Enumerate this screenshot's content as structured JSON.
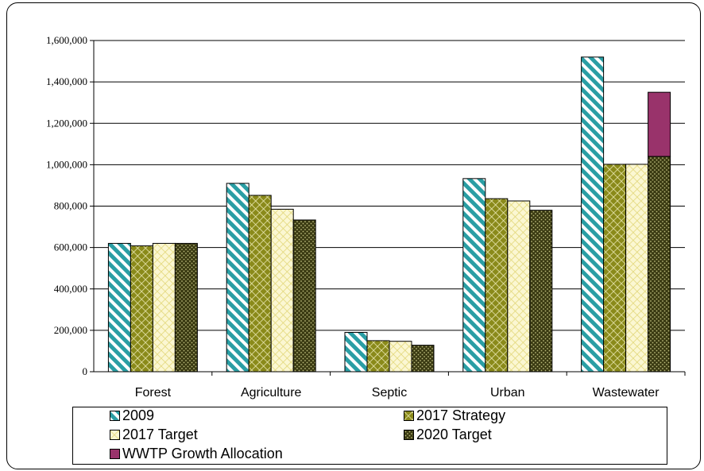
{
  "chart_data": {
    "type": "bar",
    "categories": [
      "Forest",
      "Agriculture",
      "Septic",
      "Urban",
      "Wastewater"
    ],
    "series": [
      {
        "name": "2009",
        "values": [
          620000,
          910000,
          190000,
          933000,
          1520000
        ],
        "color": "#2a9ea4",
        "pattern": "diagonal-stripes"
      },
      {
        "name": "2017 Strategy",
        "values": [
          608000,
          852000,
          150000,
          836000,
          1002000
        ],
        "color": "#8a8a1a",
        "pattern": "crosshatch"
      },
      {
        "name": "2017 Target",
        "values": [
          620000,
          785000,
          147000,
          825000,
          1002000
        ],
        "color": "#f5eea8",
        "pattern": "crosshatch-light"
      },
      {
        "name": "2020 Target",
        "values": [
          620000,
          733000,
          128000,
          780000,
          1040000
        ],
        "color": "#3a3a12",
        "pattern": "dotted"
      }
    ],
    "stacked_extra": {
      "name": "WWTP Growth Allocation",
      "category": "Wastewater",
      "on_series": "2020 Target",
      "value": 310000,
      "color": "#99336b"
    },
    "yticks": [
      "0",
      "200,000",
      "400,000",
      "600,000",
      "800,000",
      "1,000,000",
      "1,200,000",
      "1,400,000",
      "1,600,000"
    ],
    "ylim": [
      0,
      1600000
    ],
    "grid": true,
    "legend_position": "bottom",
    "title": "",
    "xlabel": "",
    "ylabel": ""
  },
  "legend": {
    "items": [
      "2009",
      "2017 Strategy",
      "2017 Target",
      "2020 Target",
      "WWTP Growth Allocation"
    ]
  }
}
